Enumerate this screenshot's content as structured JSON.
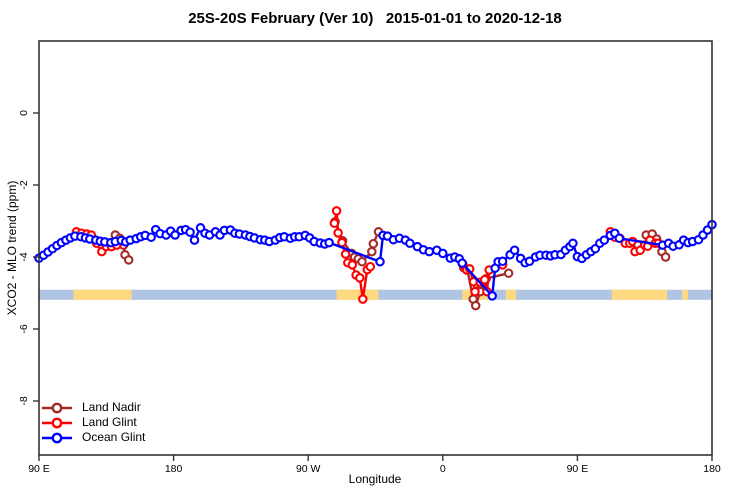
{
  "chart_data": {
    "type": "line",
    "title": "25S-20S February (Ver 10)   2015-01-01 to 2020-12-18",
    "xlabel": "Longitude",
    "ylabel": "XCO2 - MLO trend (ppm)",
    "grid": false,
    "x_axis": {
      "range": [
        90,
        540
      ],
      "ticks": [
        90,
        180,
        270,
        360,
        450,
        540
      ],
      "tick_labels": [
        "90 E",
        "180",
        "90 W",
        "0",
        "90 E",
        "180"
      ],
      "note": "longitude increasing eastward from 90E, wrapping through 180 and 0"
    },
    "y_axis": {
      "range": [
        2,
        -9.5
      ],
      "ticks": [
        0,
        -2,
        -4,
        -6,
        -8
      ],
      "tick_labels": [
        "0",
        "-2",
        "-4",
        "-6",
        "-8"
      ]
    },
    "legend": {
      "position": "bottom-left",
      "entries": [
        {
          "label": "Land Nadir",
          "color": "#A52A2A"
        },
        {
          "label": "Land Glint",
          "color": "#FF0000"
        },
        {
          "label": "Ocean Glint",
          "color": "#0000FF"
        }
      ]
    },
    "surface_band": {
      "description": "ocean/land strip drawn across plot near y=-5",
      "y_center": -5.05,
      "half_height": 0.14,
      "ocean_color": "#AFC5E3",
      "land_color": "#FFD980",
      "land_segments_lon": [
        [
          113,
          152
        ],
        [
          289,
          317
        ],
        [
          373,
          393
        ],
        [
          402,
          409
        ],
        [
          473,
          510
        ],
        [
          520,
          524
        ]
      ]
    },
    "series": [
      {
        "name": "Land Nadir",
        "color": "#A52A2A",
        "marker": "open-circle",
        "segments": [
          [
            [
              141,
              -3.39
            ],
            [
              144,
              -3.48
            ],
            [
              146.5,
              -3.67
            ],
            [
              147.5,
              -3.94
            ],
            [
              150,
              -4.08
            ]
          ],
          [
            [
              288,
              -3.02
            ],
            [
              293,
              -3.55
            ],
            [
              299,
              -3.9
            ],
            [
              301,
              -4.0
            ],
            [
              303.5,
              -4.05
            ],
            [
              306,
              -4.13
            ],
            [
              312.5,
              -3.85
            ],
            [
              313.5,
              -3.63
            ],
            [
              317,
              -3.3
            ]
          ],
          [
            [
              374,
              -4.3
            ],
            [
              376.5,
              -4.36
            ],
            [
              380.3,
              -5.17
            ],
            [
              382,
              -5.35
            ],
            [
              385,
              -4.96
            ],
            [
              389,
              -4.6
            ],
            [
              404,
              -4.45
            ]
          ],
          [
            [
              496,
              -3.39
            ],
            [
              500,
              -3.36
            ],
            [
              503,
              -3.5
            ],
            [
              506.5,
              -3.85
            ],
            [
              509,
              -4.0
            ]
          ]
        ]
      },
      {
        "name": "Land Glint",
        "color": "#FF0000",
        "marker": "open-circle",
        "segments": [
          [
            [
              115,
              -3.3
            ],
            [
              118.5,
              -3.34
            ],
            [
              122,
              -3.36
            ],
            [
              125,
              -3.39
            ],
            [
              128.5,
              -3.62
            ],
            [
              132,
              -3.85
            ],
            [
              135,
              -3.71
            ],
            [
              138.5,
              -3.71
            ],
            [
              142,
              -3.67
            ],
            [
              145,
              -3.56
            ]
          ],
          [
            [
              287.5,
              -3.06
            ],
            [
              289,
              -2.72
            ],
            [
              290,
              -3.33
            ],
            [
              292.5,
              -3.6
            ],
            [
              295,
              -3.92
            ],
            [
              296.5,
              -4.16
            ],
            [
              299.5,
              -4.22
            ],
            [
              302,
              -4.5
            ],
            [
              304.5,
              -4.58
            ],
            [
              306.5,
              -5.17
            ],
            [
              309.5,
              -4.35
            ],
            [
              311.5,
              -4.27
            ]
          ],
          [
            [
              373.5,
              -4.22
            ],
            [
              376,
              -4.36
            ],
            [
              378,
              -4.33
            ],
            [
              380.5,
              -4.69
            ],
            [
              381.5,
              -4.96
            ],
            [
              385,
              -4.7
            ],
            [
              388,
              -4.63
            ],
            [
              389.5,
              -4.96
            ],
            [
              391,
              -4.36
            ],
            [
              400,
              -4.22
            ]
          ],
          [
            [
              472,
              -3.3
            ],
            [
              475,
              -3.45
            ],
            [
              478.5,
              -3.48
            ],
            [
              482,
              -3.62
            ],
            [
              485,
              -3.62
            ],
            [
              487,
              -3.57
            ],
            [
              488.5,
              -3.85
            ],
            [
              490.5,
              -3.67
            ],
            [
              492,
              -3.81
            ],
            [
              495,
              -3.67
            ],
            [
              497,
              -3.7
            ],
            [
              498.5,
              -3.53
            ],
            [
              502,
              -3.62
            ],
            [
              504,
              -3.62
            ]
          ]
        ]
      },
      {
        "name": "Ocean Glint",
        "color": "#0000FF",
        "marker": "open-circle",
        "segments": [
          [
            [
              90,
              -4.03
            ],
            [
              93,
              -3.95
            ],
            [
              96,
              -3.86
            ],
            [
              99,
              -3.77
            ],
            [
              102,
              -3.68
            ],
            [
              105,
              -3.6
            ],
            [
              108,
              -3.53
            ],
            [
              111,
              -3.47
            ],
            [
              114,
              -3.42
            ],
            [
              118,
              -3.44
            ],
            [
              121,
              -3.47
            ],
            [
              124,
              -3.5
            ],
            [
              128,
              -3.53
            ],
            [
              131,
              -3.56
            ],
            [
              134,
              -3.58
            ],
            [
              138,
              -3.6
            ],
            [
              141,
              -3.57
            ],
            [
              145,
              -3.54
            ],
            [
              148,
              -3.58
            ],
            [
              151,
              -3.53
            ],
            [
              155,
              -3.49
            ],
            [
              158,
              -3.44
            ],
            [
              161,
              -3.4
            ],
            [
              165,
              -3.45
            ],
            [
              168,
              -3.24
            ],
            [
              171,
              -3.35
            ],
            [
              175,
              -3.39
            ],
            [
              178,
              -3.28
            ],
            [
              181,
              -3.39
            ],
            [
              185,
              -3.26
            ],
            [
              188,
              -3.24
            ],
            [
              191,
              -3.31
            ],
            [
              194,
              -3.53
            ],
            [
              198,
              -3.19
            ],
            [
              201,
              -3.34
            ],
            [
              204,
              -3.39
            ],
            [
              208,
              -3.3
            ],
            [
              211,
              -3.39
            ],
            [
              214,
              -3.26
            ],
            [
              218,
              -3.25
            ],
            [
              221,
              -3.34
            ],
            [
              224,
              -3.36
            ],
            [
              228,
              -3.39
            ],
            [
              231,
              -3.43
            ],
            [
              234,
              -3.47
            ],
            [
              238,
              -3.52
            ],
            [
              241,
              -3.53
            ],
            [
              244,
              -3.57
            ],
            [
              248,
              -3.53
            ],
            [
              251,
              -3.46
            ],
            [
              254,
              -3.44
            ],
            [
              258,
              -3.48
            ],
            [
              261,
              -3.44
            ],
            [
              264,
              -3.44
            ],
            [
              268,
              -3.4
            ],
            [
              271,
              -3.47
            ],
            [
              274,
              -3.57
            ],
            [
              278,
              -3.61
            ],
            [
              281,
              -3.64
            ],
            [
              284,
              -3.6
            ],
            [
              318,
              -4.13
            ],
            [
              320,
              -3.4
            ],
            [
              323,
              -3.42
            ],
            [
              327,
              -3.52
            ],
            [
              331,
              -3.48
            ],
            [
              335,
              -3.53
            ],
            [
              338,
              -3.62
            ],
            [
              343,
              -3.71
            ],
            [
              347,
              -3.8
            ],
            [
              351,
              -3.85
            ],
            [
              356,
              -3.81
            ],
            [
              360,
              -3.9
            ],
            [
              365,
              -4.03
            ],
            [
              368,
              -4.0
            ],
            [
              371,
              -4.05
            ],
            [
              373,
              -4.17
            ],
            [
              393,
              -5.08
            ],
            [
              395,
              -4.31
            ],
            [
              397,
              -4.13
            ],
            [
              400,
              -4.12
            ],
            [
              405,
              -3.94
            ],
            [
              408,
              -3.81
            ],
            [
              412,
              -4.04
            ],
            [
              415,
              -4.16
            ],
            [
              418,
              -4.12
            ],
            [
              422,
              -4.0
            ],
            [
              425,
              -3.95
            ],
            [
              429,
              -3.95
            ],
            [
              432,
              -3.97
            ],
            [
              435,
              -3.94
            ],
            [
              439,
              -3.93
            ],
            [
              442,
              -3.81
            ],
            [
              445,
              -3.71
            ],
            [
              447,
              -3.62
            ],
            [
              450,
              -3.99
            ],
            [
              453,
              -4.04
            ],
            [
              456,
              -3.94
            ],
            [
              459,
              -3.85
            ],
            [
              462,
              -3.77
            ],
            [
              465,
              -3.62
            ],
            [
              468,
              -3.53
            ],
            [
              472,
              -3.4
            ],
            [
              475,
              -3.34
            ],
            [
              478,
              -3.48
            ],
            [
              507,
              -3.67
            ],
            [
              511,
              -3.62
            ],
            [
              514,
              -3.7
            ],
            [
              518,
              -3.66
            ],
            [
              521,
              -3.53
            ],
            [
              524,
              -3.6
            ],
            [
              527,
              -3.57
            ],
            [
              531,
              -3.52
            ],
            [
              534,
              -3.39
            ],
            [
              537,
              -3.25
            ],
            [
              540,
              -3.1
            ]
          ]
        ]
      }
    ]
  }
}
